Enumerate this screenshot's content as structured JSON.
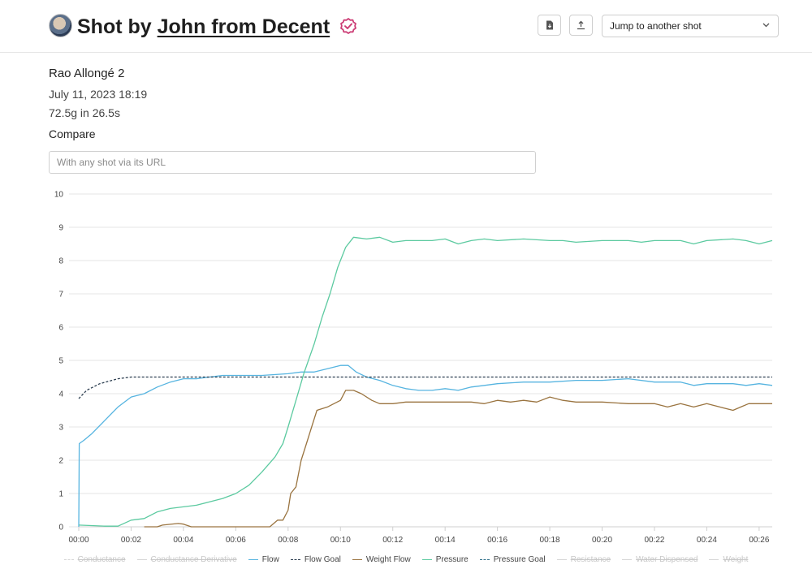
{
  "header": {
    "title_prefix": "Shot by",
    "author": "John from Decent",
    "jump_label": "Jump to another shot"
  },
  "shot": {
    "name": "Rao Allongé 2",
    "date": "July 11, 2023 18:19",
    "summary": "72.5g in 26.5s"
  },
  "compare": {
    "label": "Compare",
    "placeholder": "With any shot via its URL"
  },
  "icons": {
    "avatar": "avatar-portrait",
    "badge": "verified-badge-icon",
    "download": "file-download-icon",
    "upload": "upload-icon",
    "dropdown": "chevron-down-icon"
  },
  "colors": {
    "badge": "#cc3d75",
    "flow": "#56b4e0",
    "flow_goal": "#2c3e50",
    "weight_flow": "#9a7440",
    "pressure": "#5ccaa0",
    "pressure_goal": "#2e6f89",
    "hidden": "#d6d6d6"
  },
  "chart_data": {
    "type": "line",
    "xlabel": "",
    "ylabel": "",
    "xlim": [
      0,
      26.5
    ],
    "ylim": [
      0,
      10
    ],
    "grid": true,
    "legend_position": "bottom",
    "x_ticks": [
      0,
      2,
      4,
      6,
      8,
      10,
      12,
      14,
      16,
      18,
      20,
      22,
      24,
      26
    ],
    "x_tick_labels": [
      "00:00",
      "00:02",
      "00:04",
      "00:06",
      "00:08",
      "00:10",
      "00:12",
      "00:14",
      "00:16",
      "00:18",
      "00:20",
      "00:22",
      "00:24",
      "00:26"
    ],
    "y_ticks": [
      0,
      1,
      2,
      3,
      4,
      5,
      6,
      7,
      8,
      9,
      10
    ],
    "series": [
      {
        "name": "Conductance",
        "visible": false,
        "dashed": true,
        "points": []
      },
      {
        "name": "Conductance Derivative",
        "visible": false,
        "dashed": false,
        "points": []
      },
      {
        "name": "Flow",
        "visible": true,
        "dashed": false,
        "color": "#56b4e0",
        "points": [
          [
            0,
            0
          ],
          [
            0.02,
            2.5
          ],
          [
            0.2,
            2.6
          ],
          [
            0.5,
            2.8
          ],
          [
            1,
            3.2
          ],
          [
            1.5,
            3.6
          ],
          [
            2,
            3.9
          ],
          [
            2.5,
            4.0
          ],
          [
            3,
            4.2
          ],
          [
            3.5,
            4.35
          ],
          [
            4,
            4.45
          ],
          [
            4.5,
            4.45
          ],
          [
            5,
            4.5
          ],
          [
            5.5,
            4.55
          ],
          [
            6,
            4.55
          ],
          [
            7,
            4.55
          ],
          [
            8,
            4.6
          ],
          [
            8.5,
            4.65
          ],
          [
            9,
            4.65
          ],
          [
            9.5,
            4.75
          ],
          [
            10,
            4.85
          ],
          [
            10.3,
            4.85
          ],
          [
            10.6,
            4.65
          ],
          [
            11,
            4.5
          ],
          [
            11.5,
            4.4
          ],
          [
            12,
            4.25
          ],
          [
            12.5,
            4.15
          ],
          [
            13,
            4.1
          ],
          [
            13.5,
            4.1
          ],
          [
            14,
            4.15
          ],
          [
            14.5,
            4.1
          ],
          [
            15,
            4.2
          ],
          [
            15.5,
            4.25
          ],
          [
            16,
            4.3
          ],
          [
            17,
            4.35
          ],
          [
            18,
            4.35
          ],
          [
            19,
            4.4
          ],
          [
            20,
            4.4
          ],
          [
            21,
            4.45
          ],
          [
            22,
            4.35
          ],
          [
            23,
            4.35
          ],
          [
            23.5,
            4.25
          ],
          [
            24,
            4.3
          ],
          [
            25,
            4.3
          ],
          [
            25.5,
            4.25
          ],
          [
            26,
            4.3
          ],
          [
            26.5,
            4.25
          ]
        ]
      },
      {
        "name": "Flow Goal",
        "visible": true,
        "dashed": true,
        "color": "#2c3e50",
        "points": [
          [
            0,
            3.85
          ],
          [
            0.3,
            4.1
          ],
          [
            0.8,
            4.3
          ],
          [
            1.5,
            4.45
          ],
          [
            2,
            4.5
          ],
          [
            26.5,
            4.5
          ]
        ]
      },
      {
        "name": "Weight Flow",
        "visible": true,
        "dashed": false,
        "color": "#9a7440",
        "points": [
          [
            2.5,
            0
          ],
          [
            3,
            0
          ],
          [
            3.2,
            0.05
          ],
          [
            3.8,
            0.1
          ],
          [
            4,
            0.08
          ],
          [
            4.3,
            0
          ],
          [
            6.5,
            0
          ],
          [
            7.3,
            0
          ],
          [
            7.6,
            0.2
          ],
          [
            7.8,
            0.2
          ],
          [
            8,
            0.5
          ],
          [
            8.1,
            1.0
          ],
          [
            8.3,
            1.2
          ],
          [
            8.5,
            2.0
          ],
          [
            8.7,
            2.5
          ],
          [
            8.9,
            3.0
          ],
          [
            9.1,
            3.5
          ],
          [
            9.5,
            3.6
          ],
          [
            10,
            3.8
          ],
          [
            10.2,
            4.1
          ],
          [
            10.5,
            4.1
          ],
          [
            10.8,
            4.0
          ],
          [
            11.2,
            3.8
          ],
          [
            11.5,
            3.7
          ],
          [
            12,
            3.7
          ],
          [
            12.5,
            3.75
          ],
          [
            13,
            3.75
          ],
          [
            14,
            3.75
          ],
          [
            15,
            3.75
          ],
          [
            15.5,
            3.7
          ],
          [
            16,
            3.8
          ],
          [
            16.5,
            3.75
          ],
          [
            17,
            3.8
          ],
          [
            17.5,
            3.75
          ],
          [
            18,
            3.9
          ],
          [
            18.5,
            3.8
          ],
          [
            19,
            3.75
          ],
          [
            20,
            3.75
          ],
          [
            21,
            3.7
          ],
          [
            22,
            3.7
          ],
          [
            22.5,
            3.6
          ],
          [
            23,
            3.7
          ],
          [
            23.5,
            3.6
          ],
          [
            24,
            3.7
          ],
          [
            24.5,
            3.6
          ],
          [
            25,
            3.5
          ],
          [
            25.3,
            3.6
          ],
          [
            25.6,
            3.7
          ],
          [
            26.5,
            3.7
          ]
        ]
      },
      {
        "name": "Pressure",
        "visible": true,
        "dashed": false,
        "color": "#5ccaa0",
        "points": [
          [
            0,
            0.05
          ],
          [
            1,
            0.02
          ],
          [
            1.5,
            0.02
          ],
          [
            2,
            0.2
          ],
          [
            2.5,
            0.25
          ],
          [
            3,
            0.45
          ],
          [
            3.5,
            0.55
          ],
          [
            4,
            0.6
          ],
          [
            4.5,
            0.65
          ],
          [
            5,
            0.75
          ],
          [
            5.5,
            0.85
          ],
          [
            6,
            1.0
          ],
          [
            6.5,
            1.25
          ],
          [
            7,
            1.65
          ],
          [
            7.5,
            2.1
          ],
          [
            7.8,
            2.5
          ],
          [
            8,
            3.0
          ],
          [
            8.3,
            3.8
          ],
          [
            8.6,
            4.6
          ],
          [
            9,
            5.5
          ],
          [
            9.3,
            6.3
          ],
          [
            9.6,
            7.0
          ],
          [
            9.9,
            7.8
          ],
          [
            10.2,
            8.4
          ],
          [
            10.5,
            8.7
          ],
          [
            11,
            8.65
          ],
          [
            11.5,
            8.7
          ],
          [
            12,
            8.55
          ],
          [
            12.5,
            8.6
          ],
          [
            13,
            8.6
          ],
          [
            13.5,
            8.6
          ],
          [
            14,
            8.65
          ],
          [
            14.5,
            8.5
          ],
          [
            15,
            8.6
          ],
          [
            15.5,
            8.65
          ],
          [
            16,
            8.6
          ],
          [
            17,
            8.65
          ],
          [
            18,
            8.6
          ],
          [
            18.5,
            8.6
          ],
          [
            19,
            8.55
          ],
          [
            20,
            8.6
          ],
          [
            21,
            8.6
          ],
          [
            21.5,
            8.55
          ],
          [
            22,
            8.6
          ],
          [
            23,
            8.6
          ],
          [
            23.5,
            8.5
          ],
          [
            24,
            8.6
          ],
          [
            25,
            8.65
          ],
          [
            25.5,
            8.6
          ],
          [
            26,
            8.5
          ],
          [
            26.5,
            8.6
          ]
        ]
      },
      {
        "name": "Pressure Goal",
        "visible": true,
        "dashed": true,
        "color": "#2e6f89",
        "points": []
      },
      {
        "name": "Resistance",
        "visible": false,
        "dashed": false,
        "points": []
      },
      {
        "name": "Water Dispensed",
        "visible": false,
        "dashed": false,
        "points": []
      },
      {
        "name": "Weight",
        "visible": false,
        "dashed": false,
        "points": []
      }
    ]
  }
}
